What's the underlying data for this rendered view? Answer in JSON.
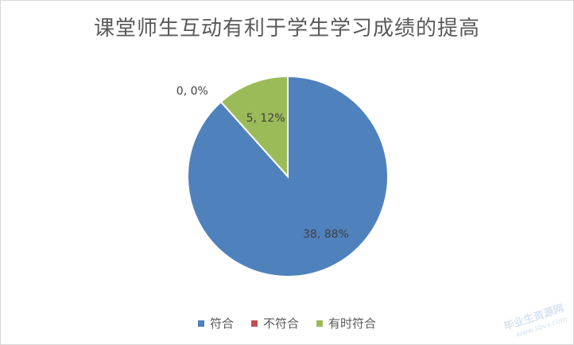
{
  "chart_data": {
    "type": "pie",
    "title": "课堂师生互动有利于学生学习成绩的提高",
    "categories": [
      "符合",
      "不符合",
      "有时符合"
    ],
    "values": [
      38,
      0,
      5
    ],
    "percentages": [
      "88%",
      "0%",
      "12%"
    ],
    "data_labels": [
      "38, 88%",
      "0, 0%",
      "5, 12%"
    ],
    "colors": [
      "#4f81bd",
      "#c0504d",
      "#9bbb59"
    ],
    "legend_position": "bottom"
  },
  "watermark": {
    "text": "毕业生资源网",
    "sub": "www.sbvv.com"
  }
}
